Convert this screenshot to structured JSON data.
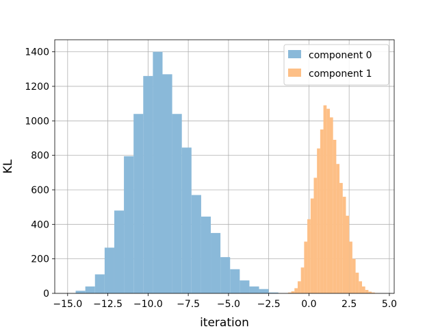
{
  "chart_data": {
    "type": "bar",
    "title": "",
    "xlabel": "iteration",
    "ylabel": "KL",
    "xlim": [
      -15.8,
      5.3
    ],
    "ylim": [
      0,
      1470
    ],
    "grid": true,
    "legend_position": "top-right",
    "x_ticks": [
      -15.0,
      -12.5,
      -10.0,
      -7.5,
      -5.0,
      -2.5,
      0.0,
      2.5,
      5.0
    ],
    "x_tick_labels": [
      "−15.0",
      "−12.5",
      "−10.0",
      "−7.5",
      "−5.0",
      "−2.5",
      "0.0",
      "2.5",
      "5.0"
    ],
    "y_ticks": [
      0,
      200,
      400,
      600,
      800,
      1000,
      1200,
      1400
    ],
    "y_tick_labels": [
      "0",
      "200",
      "400",
      "600",
      "800",
      "1000",
      "1200",
      "1400"
    ],
    "series": [
      {
        "name": "component 0",
        "color": "#8ab9d9",
        "bin_edges": [
          -14.5,
          -13.9,
          -13.3,
          -12.7,
          -12.1,
          -11.5,
          -10.9,
          -10.3,
          -9.7,
          -9.1,
          -8.5,
          -7.9,
          -7.3,
          -6.7,
          -6.1,
          -5.5,
          -4.9,
          -4.3,
          -3.7,
          -3.1,
          -2.5,
          -1.9
        ],
        "counts": [
          15,
          40,
          110,
          265,
          480,
          795,
          1040,
          1260,
          1400,
          1270,
          1040,
          845,
          570,
          445,
          350,
          210,
          140,
          75,
          40,
          25,
          5
        ]
      },
      {
        "name": "component 1",
        "color": "#fdbf86",
        "bin_edges": [
          -1.3,
          -1.1,
          -0.9,
          -0.7,
          -0.5,
          -0.3,
          -0.1,
          0.1,
          0.3,
          0.5,
          0.7,
          0.9,
          1.1,
          1.3,
          1.5,
          1.7,
          1.9,
          2.1,
          2.3,
          2.5,
          2.7,
          2.9,
          3.1,
          3.3,
          3.5,
          3.7,
          3.9,
          4.1,
          4.3
        ],
        "counts": [
          5,
          12,
          30,
          70,
          150,
          300,
          430,
          550,
          670,
          840,
          950,
          1090,
          1070,
          1020,
          890,
          750,
          640,
          560,
          450,
          300,
          200,
          120,
          70,
          40,
          20,
          10,
          5,
          2
        ]
      }
    ]
  }
}
